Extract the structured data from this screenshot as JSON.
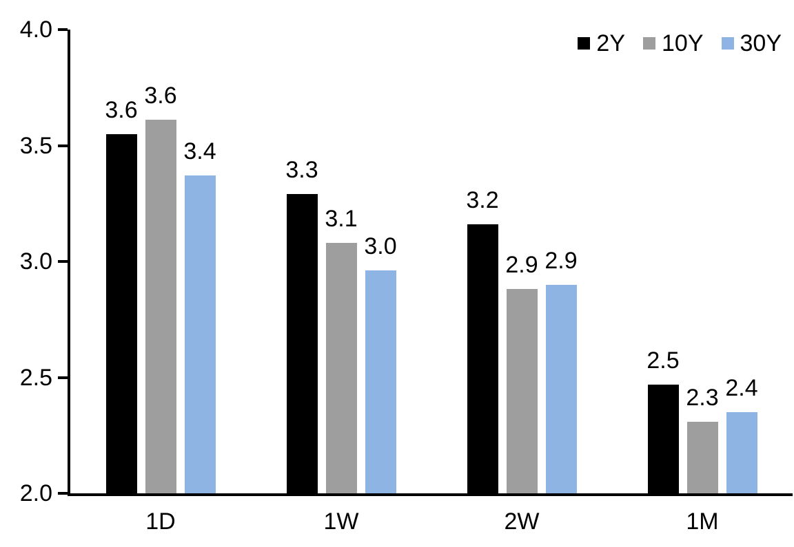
{
  "chart_data": {
    "type": "bar",
    "title": "",
    "xlabel": "",
    "ylabel": "",
    "categories": [
      "1D",
      "1W",
      "2W",
      "1M"
    ],
    "series": [
      {
        "name": "2Y",
        "color": "#000000",
        "values": [
          3.55,
          3.29,
          3.16,
          2.47
        ],
        "value_labels": [
          "3.6",
          "3.3",
          "3.2",
          "2.5"
        ]
      },
      {
        "name": "10Y",
        "color": "#9E9E9E",
        "values": [
          3.61,
          3.08,
          2.88,
          2.31
        ],
        "value_labels": [
          "3.6",
          "3.1",
          "2.9",
          "2.3"
        ]
      },
      {
        "name": "30Y",
        "color": "#8DB4E2",
        "values": [
          3.37,
          2.96,
          2.9,
          2.35
        ],
        "value_labels": [
          "3.4",
          "3.0",
          "2.9",
          "2.4"
        ]
      }
    ],
    "ylim": [
      2.0,
      4.0
    ],
    "y_ticks": [
      {
        "value": 2.0,
        "label": "2.0"
      },
      {
        "value": 2.5,
        "label": "2.5"
      },
      {
        "value": 3.0,
        "label": "3.0"
      },
      {
        "value": 3.5,
        "label": "3.5"
      },
      {
        "value": 4.0,
        "label": "4.0"
      }
    ],
    "grid": false,
    "legend_position": "top-right",
    "axis_color": "#000000",
    "background_color": "#FFFFFF",
    "text_color": "#000000"
  }
}
